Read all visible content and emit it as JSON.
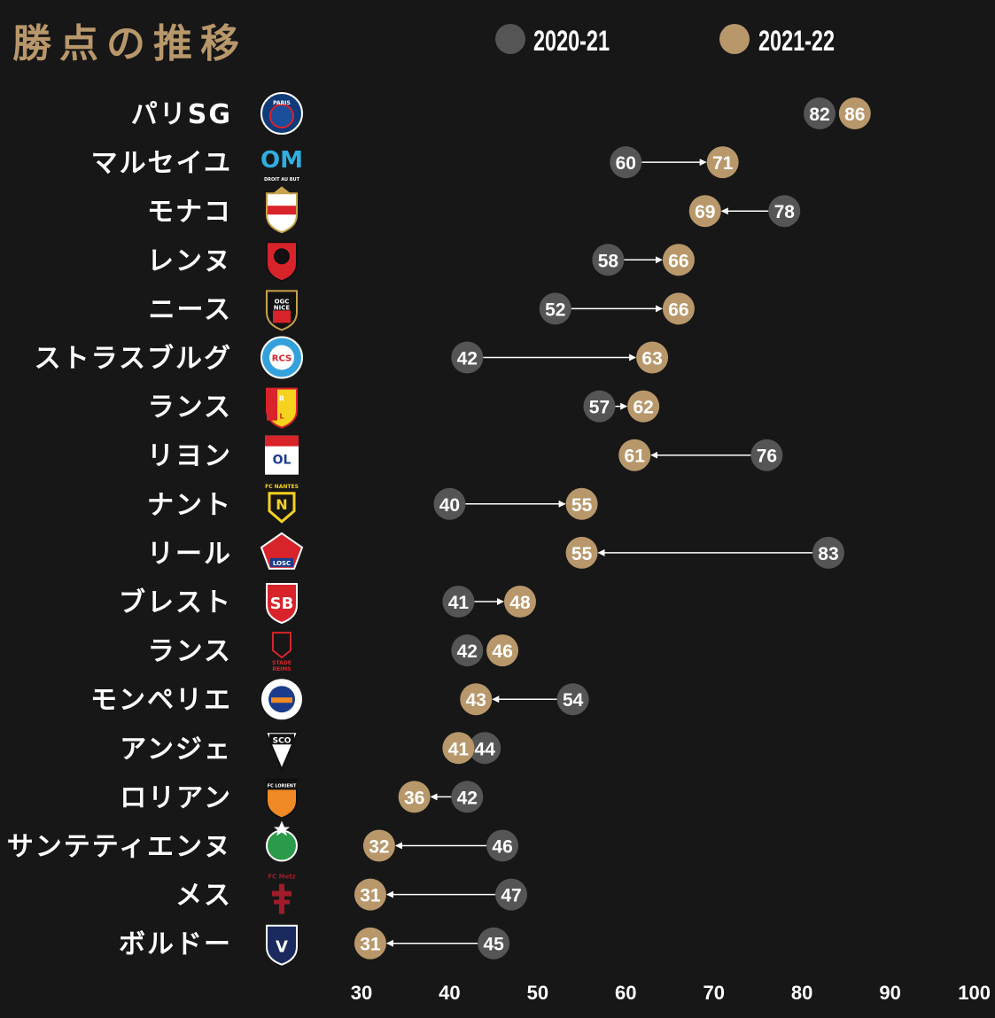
{
  "title": "勝点の推移",
  "colors": {
    "background": "#171717",
    "prev": "#555555",
    "curr": "#b8976a",
    "title": "#b8976a",
    "text": "#ffffff",
    "arrow": "#ffffff"
  },
  "chart_data": {
    "type": "dumbbell",
    "title": "勝点の推移",
    "xlabel": "",
    "ylabel": "",
    "xlim": [
      30,
      100
    ],
    "x_ticks": [
      30,
      40,
      50,
      60,
      70,
      80,
      90,
      100
    ],
    "grid": false,
    "legend_position": "top",
    "series": [
      {
        "name": "2020-21",
        "color": "#555555"
      },
      {
        "name": "2021-22",
        "color": "#b8976a"
      }
    ],
    "categories": [
      "パリSG",
      "マルセイユ",
      "モナコ",
      "レンヌ",
      "ニース",
      "ストラスブルグ",
      "ランス",
      "リヨン",
      "ナント",
      "リール",
      "ブレスト",
      "ランス",
      "モンペリエ",
      "アンジェ",
      "ロリアン",
      "サンテティエンヌ",
      "メス",
      "ボルドー"
    ],
    "rows": [
      {
        "team": "パリSG",
        "prev": 82,
        "curr": 86,
        "logo": "psg-logo",
        "logo_text": "PARIS"
      },
      {
        "team": "マルセイユ",
        "prev": 60,
        "curr": 71,
        "logo": "marseille-logo",
        "logo_text": "DROIT AU BUT"
      },
      {
        "team": "モナコ",
        "prev": 78,
        "curr": 69,
        "logo": "monaco-logo",
        "logo_text": ""
      },
      {
        "team": "レンヌ",
        "prev": 58,
        "curr": 66,
        "logo": "rennes-logo",
        "logo_text": ""
      },
      {
        "team": "ニース",
        "prev": 52,
        "curr": 66,
        "logo": "nice-logo",
        "logo_text": "OGC NICE"
      },
      {
        "team": "ストラスブルグ",
        "prev": 42,
        "curr": 63,
        "logo": "strasbourg-logo",
        "logo_text": "RCS"
      },
      {
        "team": "ランス",
        "prev": 57,
        "curr": 62,
        "logo": "lens-logo",
        "logo_text": "RCL"
      },
      {
        "team": "リヨン",
        "prev": 76,
        "curr": 61,
        "logo": "lyon-logo",
        "logo_text": "OL"
      },
      {
        "team": "ナント",
        "prev": 40,
        "curr": 55,
        "logo": "nantes-logo",
        "logo_text": "FC NANTES"
      },
      {
        "team": "リール",
        "prev": 83,
        "curr": 55,
        "logo": "lille-logo",
        "logo_text": "LOSC"
      },
      {
        "team": "ブレスト",
        "prev": 41,
        "curr": 48,
        "logo": "brest-logo",
        "logo_text": "SB"
      },
      {
        "team": "ランス",
        "prev": 42,
        "curr": 46,
        "logo": "reims-logo",
        "logo_text": "STADE REIMS"
      },
      {
        "team": "モンペリエ",
        "prev": 54,
        "curr": 43,
        "logo": "montpellier-logo",
        "logo_text": ""
      },
      {
        "team": "アンジェ",
        "prev": 44,
        "curr": 41,
        "logo": "angers-logo",
        "logo_text": "SCO"
      },
      {
        "team": "ロリアン",
        "prev": 42,
        "curr": 36,
        "logo": "lorient-logo",
        "logo_text": "FC LORIENT"
      },
      {
        "team": "サンテティエンヌ",
        "prev": 46,
        "curr": 32,
        "logo": "saint-etienne-logo",
        "logo_text": ""
      },
      {
        "team": "メス",
        "prev": 47,
        "curr": 31,
        "logo": "metz-logo",
        "logo_text": "FC Metz"
      },
      {
        "team": "ボルドー",
        "prev": 45,
        "curr": 31,
        "logo": "bordeaux-logo",
        "logo_text": ""
      }
    ]
  }
}
